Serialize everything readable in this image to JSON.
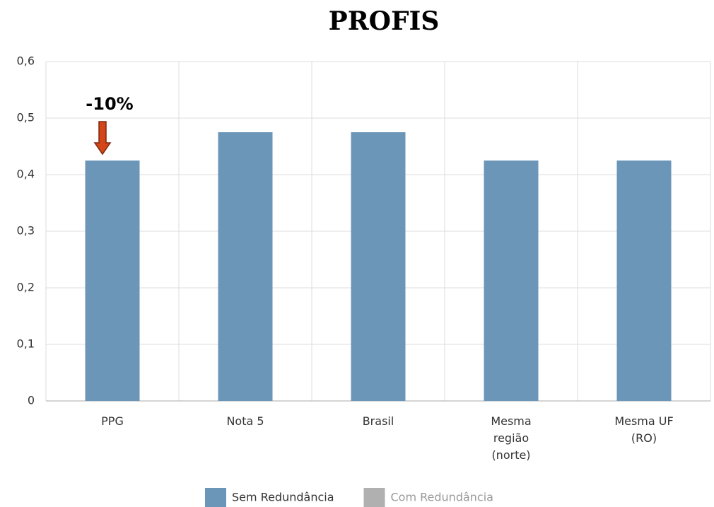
{
  "chart_data": {
    "type": "bar",
    "title": "PROFIS",
    "categories": [
      "PPG",
      "Nota 5",
      "Brasil",
      "Mesma\nregião\n(norte)",
      "Mesma UF\n(RO)"
    ],
    "series": [
      {
        "name": "Sem Redundância",
        "color": "#6b96b8",
        "values": [
          0.425,
          0.475,
          0.475,
          0.425,
          0.425
        ]
      },
      {
        "name": "Com Redundância",
        "color": "#b0b0b0",
        "values": [
          null,
          null,
          null,
          null,
          null
        ],
        "hidden": true
      }
    ],
    "ylim": [
      0,
      0.6
    ],
    "yticks": [
      0,
      {
        "value": 0.1,
        "label": "0,1"
      },
      {
        "value": 0.2,
        "label": "0,2"
      },
      {
        "value": 0.3,
        "label": "0,3"
      },
      {
        "value": 0.4,
        "label": "0,4"
      },
      {
        "value": 0.5,
        "label": "0,5"
      },
      {
        "value": 0.6,
        "label": "0,6"
      }
    ],
    "grid": true,
    "annotations": [
      {
        "text": "-10%"
      }
    ]
  }
}
